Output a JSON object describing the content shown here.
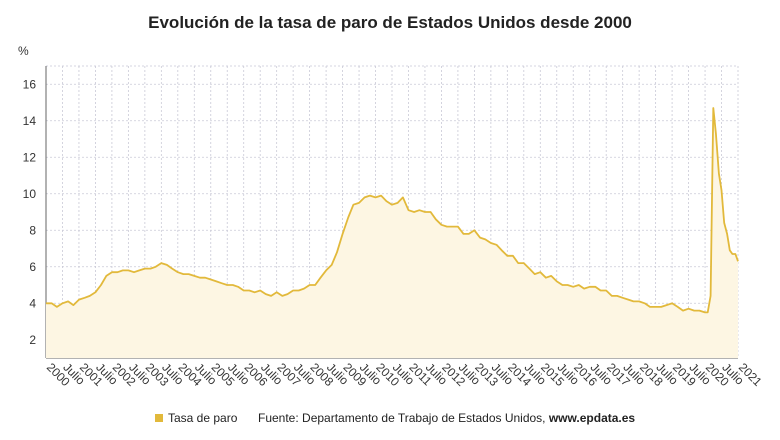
{
  "chart_data": {
    "type": "line",
    "title": "Evolución de la tasa de paro de Estados Unidos desde 2000",
    "ylabel": "%",
    "xlabel": "",
    "ylim": [
      1,
      17
    ],
    "yticks": [
      2,
      4,
      6,
      8,
      10,
      12,
      14,
      16
    ],
    "xlim": [
      2000.0,
      2021.0
    ],
    "grid": true,
    "legend_position": "bottom-left",
    "color": "#e2b93b",
    "x_ticks": [
      {
        "x": 2000.0,
        "label": "2000"
      },
      {
        "x": 2000.5,
        "label": "Julio"
      },
      {
        "x": 2001.0,
        "label": "2001"
      },
      {
        "x": 2001.5,
        "label": "Julio"
      },
      {
        "x": 2002.0,
        "label": "2002"
      },
      {
        "x": 2002.5,
        "label": "Julio"
      },
      {
        "x": 2003.0,
        "label": "2003"
      },
      {
        "x": 2003.5,
        "label": "Julio"
      },
      {
        "x": 2004.0,
        "label": "2004"
      },
      {
        "x": 2004.5,
        "label": "Julio"
      },
      {
        "x": 2005.0,
        "label": "2005"
      },
      {
        "x": 2005.5,
        "label": "Julio"
      },
      {
        "x": 2006.0,
        "label": "2006"
      },
      {
        "x": 2006.5,
        "label": "Julio"
      },
      {
        "x": 2007.0,
        "label": "2007"
      },
      {
        "x": 2007.5,
        "label": "Julio"
      },
      {
        "x": 2008.0,
        "label": "2008"
      },
      {
        "x": 2008.5,
        "label": "Julio"
      },
      {
        "x": 2009.0,
        "label": "2009"
      },
      {
        "x": 2009.5,
        "label": "Julio"
      },
      {
        "x": 2010.0,
        "label": "2010"
      },
      {
        "x": 2010.5,
        "label": "Julio"
      },
      {
        "x": 2011.0,
        "label": "2011"
      },
      {
        "x": 2011.5,
        "label": "Julio"
      },
      {
        "x": 2012.0,
        "label": "2012"
      },
      {
        "x": 2012.5,
        "label": "Julio"
      },
      {
        "x": 2013.0,
        "label": "2013"
      },
      {
        "x": 2013.5,
        "label": "Julio"
      },
      {
        "x": 2014.0,
        "label": "2014"
      },
      {
        "x": 2014.5,
        "label": "Julio"
      },
      {
        "x": 2015.0,
        "label": "2015"
      },
      {
        "x": 2015.5,
        "label": "Julio"
      },
      {
        "x": 2016.0,
        "label": "2016"
      },
      {
        "x": 2016.5,
        "label": "Julio"
      },
      {
        "x": 2017.0,
        "label": "2017"
      },
      {
        "x": 2017.5,
        "label": "Julio"
      },
      {
        "x": 2018.0,
        "label": "2018"
      },
      {
        "x": 2018.5,
        "label": "Julio"
      },
      {
        "x": 2019.0,
        "label": "2019"
      },
      {
        "x": 2019.5,
        "label": "Julio"
      },
      {
        "x": 2020.0,
        "label": "2020"
      },
      {
        "x": 2020.5,
        "label": "Julio"
      },
      {
        "x": 2021.0,
        "label": "2021"
      }
    ],
    "series": [
      {
        "name": "Tasa de paro",
        "points": [
          [
            2000.0,
            4.0
          ],
          [
            2000.17,
            4.0
          ],
          [
            2000.33,
            3.8
          ],
          [
            2000.5,
            4.0
          ],
          [
            2000.67,
            4.1
          ],
          [
            2000.83,
            3.9
          ],
          [
            2001.0,
            4.2
          ],
          [
            2001.17,
            4.3
          ],
          [
            2001.33,
            4.4
          ],
          [
            2001.5,
            4.6
          ],
          [
            2001.67,
            5.0
          ],
          [
            2001.83,
            5.5
          ],
          [
            2002.0,
            5.7
          ],
          [
            2002.17,
            5.7
          ],
          [
            2002.33,
            5.8
          ],
          [
            2002.5,
            5.8
          ],
          [
            2002.67,
            5.7
          ],
          [
            2002.83,
            5.8
          ],
          [
            2003.0,
            5.9
          ],
          [
            2003.17,
            5.9
          ],
          [
            2003.33,
            6.0
          ],
          [
            2003.5,
            6.2
          ],
          [
            2003.67,
            6.1
          ],
          [
            2003.83,
            5.9
          ],
          [
            2004.0,
            5.7
          ],
          [
            2004.17,
            5.6
          ],
          [
            2004.33,
            5.6
          ],
          [
            2004.5,
            5.5
          ],
          [
            2004.67,
            5.4
          ],
          [
            2004.83,
            5.4
          ],
          [
            2005.0,
            5.3
          ],
          [
            2005.17,
            5.2
          ],
          [
            2005.33,
            5.1
          ],
          [
            2005.5,
            5.0
          ],
          [
            2005.67,
            5.0
          ],
          [
            2005.83,
            4.9
          ],
          [
            2006.0,
            4.7
          ],
          [
            2006.17,
            4.7
          ],
          [
            2006.33,
            4.6
          ],
          [
            2006.5,
            4.7
          ],
          [
            2006.67,
            4.5
          ],
          [
            2006.83,
            4.4
          ],
          [
            2007.0,
            4.6
          ],
          [
            2007.17,
            4.4
          ],
          [
            2007.33,
            4.5
          ],
          [
            2007.5,
            4.7
          ],
          [
            2007.67,
            4.7
          ],
          [
            2007.83,
            4.8
          ],
          [
            2008.0,
            5.0
          ],
          [
            2008.17,
            5.0
          ],
          [
            2008.33,
            5.4
          ],
          [
            2008.5,
            5.8
          ],
          [
            2008.67,
            6.1
          ],
          [
            2008.83,
            6.8
          ],
          [
            2009.0,
            7.8
          ],
          [
            2009.17,
            8.7
          ],
          [
            2009.33,
            9.4
          ],
          [
            2009.5,
            9.5
          ],
          [
            2009.67,
            9.8
          ],
          [
            2009.83,
            9.9
          ],
          [
            2010.0,
            9.8
          ],
          [
            2010.17,
            9.9
          ],
          [
            2010.33,
            9.6
          ],
          [
            2010.5,
            9.4
          ],
          [
            2010.67,
            9.5
          ],
          [
            2010.83,
            9.8
          ],
          [
            2011.0,
            9.1
          ],
          [
            2011.17,
            9.0
          ],
          [
            2011.33,
            9.1
          ],
          [
            2011.5,
            9.0
          ],
          [
            2011.67,
            9.0
          ],
          [
            2011.83,
            8.6
          ],
          [
            2012.0,
            8.3
          ],
          [
            2012.17,
            8.2
          ],
          [
            2012.33,
            8.2
          ],
          [
            2012.5,
            8.2
          ],
          [
            2012.67,
            7.8
          ],
          [
            2012.83,
            7.8
          ],
          [
            2013.0,
            8.0
          ],
          [
            2013.17,
            7.6
          ],
          [
            2013.33,
            7.5
          ],
          [
            2013.5,
            7.3
          ],
          [
            2013.67,
            7.2
          ],
          [
            2013.83,
            6.9
          ],
          [
            2014.0,
            6.6
          ],
          [
            2014.17,
            6.6
          ],
          [
            2014.33,
            6.2
          ],
          [
            2014.5,
            6.2
          ],
          [
            2014.67,
            5.9
          ],
          [
            2014.83,
            5.6
          ],
          [
            2015.0,
            5.7
          ],
          [
            2015.17,
            5.4
          ],
          [
            2015.33,
            5.5
          ],
          [
            2015.5,
            5.2
          ],
          [
            2015.67,
            5.0
          ],
          [
            2015.83,
            5.0
          ],
          [
            2016.0,
            4.9
          ],
          [
            2016.17,
            5.0
          ],
          [
            2016.33,
            4.8
          ],
          [
            2016.5,
            4.9
          ],
          [
            2016.67,
            4.9
          ],
          [
            2016.83,
            4.7
          ],
          [
            2017.0,
            4.7
          ],
          [
            2017.17,
            4.4
          ],
          [
            2017.33,
            4.4
          ],
          [
            2017.5,
            4.3
          ],
          [
            2017.67,
            4.2
          ],
          [
            2017.83,
            4.1
          ],
          [
            2018.0,
            4.1
          ],
          [
            2018.17,
            4.0
          ],
          [
            2018.33,
            3.8
          ],
          [
            2018.5,
            3.8
          ],
          [
            2018.67,
            3.8
          ],
          [
            2018.83,
            3.9
          ],
          [
            2019.0,
            4.0
          ],
          [
            2019.17,
            3.8
          ],
          [
            2019.33,
            3.6
          ],
          [
            2019.5,
            3.7
          ],
          [
            2019.67,
            3.6
          ],
          [
            2019.83,
            3.6
          ],
          [
            2020.0,
            3.5
          ],
          [
            2020.08,
            3.5
          ],
          [
            2020.17,
            4.4
          ],
          [
            2020.25,
            14.7
          ],
          [
            2020.33,
            13.3
          ],
          [
            2020.42,
            11.1
          ],
          [
            2020.5,
            10.2
          ],
          [
            2020.58,
            8.4
          ],
          [
            2020.67,
            7.8
          ],
          [
            2020.75,
            6.9
          ],
          [
            2020.83,
            6.7
          ],
          [
            2020.92,
            6.7
          ],
          [
            2021.0,
            6.3
          ]
        ]
      }
    ]
  },
  "legend": {
    "label": "Tasa de paro",
    "source_prefix": "Fuente: Departamento de Trabajo de Estados Unidos, ",
    "source_site": "www.epdata.es"
  }
}
